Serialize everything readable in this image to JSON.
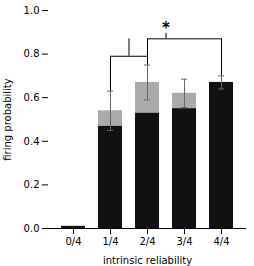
{
  "chart_data": {
    "type": "bar",
    "stacked": true,
    "categories": [
      "0/4",
      "1/4",
      "2/4",
      "3/4",
      "4/4"
    ],
    "series": [
      {
        "color": "#111111",
        "values": [
          0.01,
          0.47,
          0.53,
          0.55,
          0.67
        ]
      },
      {
        "color": "#aaaaaa",
        "values": [
          0.0,
          0.07,
          0.14,
          0.07,
          0.0
        ]
      }
    ],
    "errors": [
      0.0,
      0.09,
      0.08,
      0.065,
      0.03
    ],
    "xlabel": "intrinsic reliability",
    "ylabel": "firing probability",
    "ylim": [
      0.0,
      1.0
    ],
    "yticks": [
      {
        "value": 0.0,
        "label": "0.0"
      },
      0.2,
      0.4,
      0.6,
      0.8,
      {
        "value": 1.0,
        "label": "1.0"
      }
    ],
    "bracket": {
      "inner": [
        "1/4",
        "2/4"
      ],
      "outer": [
        "2/4",
        "4/4"
      ],
      "y_inner": 0.79,
      "y_outer": 0.87,
      "y_star": 0.895,
      "text": "*"
    }
  }
}
